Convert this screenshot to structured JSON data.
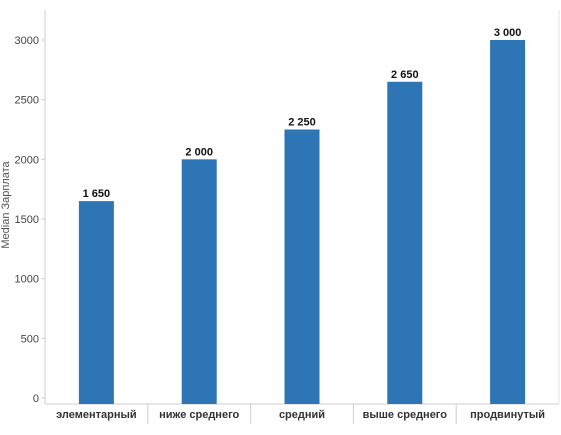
{
  "chart_data": {
    "type": "bar",
    "title": "",
    "xlabel": "",
    "ylabel": "Median Зарплата",
    "categories": [
      "элементарный",
      "ниже среднего",
      "средний",
      "выше среднего",
      "продвинутый"
    ],
    "values": [
      1650,
      2000,
      2250,
      2650,
      3000
    ],
    "value_labels": [
      "1 650",
      "2 000",
      "2 250",
      "2 650",
      "3 000"
    ],
    "ylim": [
      0,
      3300
    ],
    "yticks": [
      0,
      500,
      1000,
      1500,
      2000,
      2500,
      3000
    ],
    "grid": false,
    "bar_color": "#2e75b6",
    "axis_color": "#cfcfcf",
    "tick_label_color": "#444444",
    "category_label_color": "#333333",
    "value_label_color": "#111111"
  }
}
